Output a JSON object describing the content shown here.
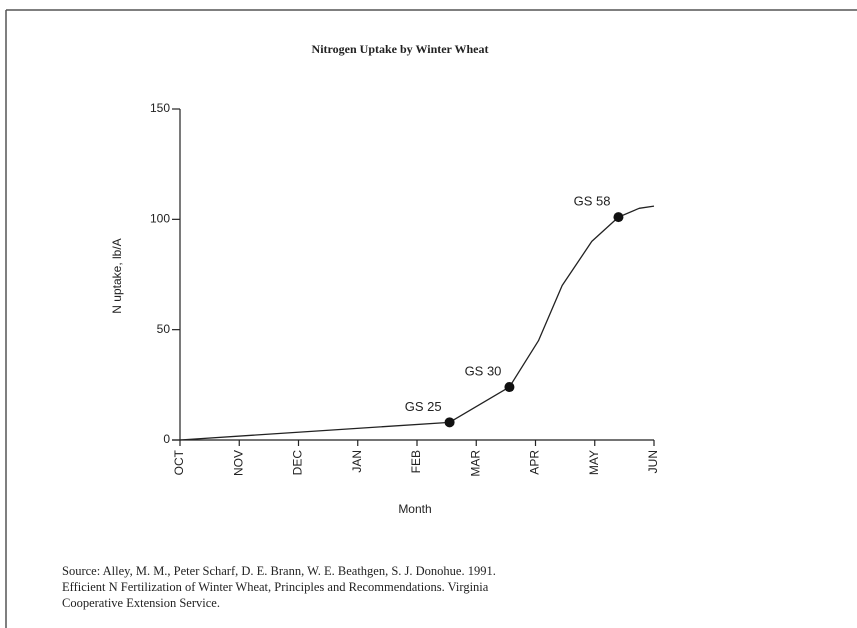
{
  "chart_data": {
    "type": "line",
    "title": "Nitrogen Uptake by Winter Wheat",
    "y_label": "N uptake, lb/A",
    "x_label": "Month",
    "xlim": [
      0,
      8
    ],
    "xticks": [
      {
        "value": 0,
        "label": "OCT"
      },
      {
        "value": 1,
        "label": "NOV"
      },
      {
        "value": 2,
        "label": "DEC"
      },
      {
        "value": 3,
        "label": "JAN"
      },
      {
        "value": 4,
        "label": "FEB"
      },
      {
        "value": 5,
        "label": "MAR"
      },
      {
        "value": 6,
        "label": "APR"
      },
      {
        "value": 7,
        "label": "MAY"
      },
      {
        "value": 8,
        "label": "JUN"
      }
    ],
    "ylim": [
      0,
      150
    ],
    "yticks": [
      0,
      50,
      100,
      150
    ],
    "series": [
      {
        "color": "#222222",
        "x": [
          0,
          4.55,
          5.56,
          6.05,
          6.45,
          6.95,
          7.4,
          7.75,
          8.0
        ],
        "values": [
          0,
          8,
          24,
          45,
          70,
          90,
          101,
          105,
          106
        ]
      }
    ],
    "annotations": [
      {
        "text": "GS 25",
        "x": 4.55,
        "y": 8
      },
      {
        "text": "GS 30",
        "x": 5.56,
        "y": 24
      },
      {
        "text": "GS 58",
        "x": 7.4,
        "y": 101
      }
    ],
    "source": [
      "Source:  Alley, M. M., Peter Scharf, D. E. Brann, W. E. Beathgen, S. J. Donohue.  1991.",
      "Efficient N Fertilization of Winter Wheat, Principles and Recommendations.  Virginia",
      "Cooperative Extension Service."
    ]
  }
}
